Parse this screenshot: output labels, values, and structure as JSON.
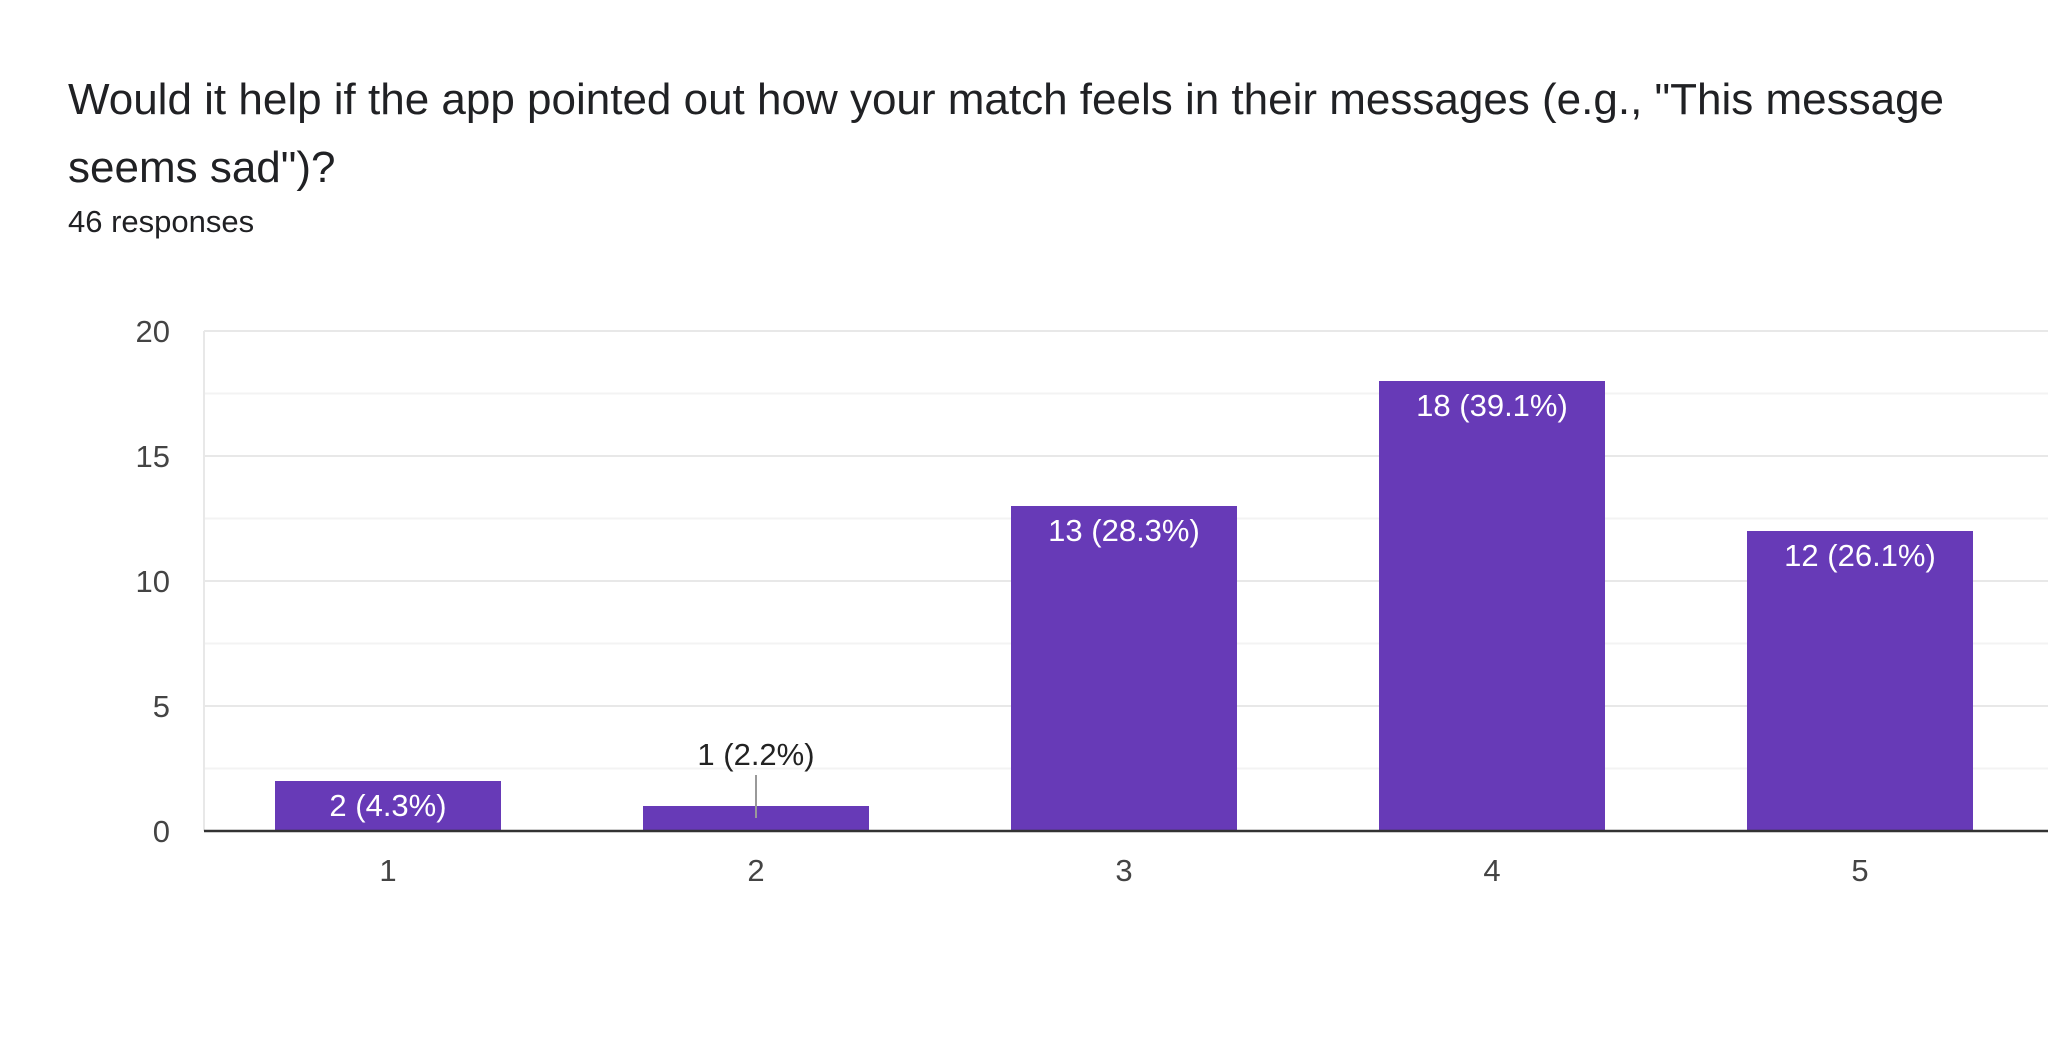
{
  "question": {
    "title": "Would it help if the app pointed out how your match feels in their messages (e.g., \"This message seems sad\")?",
    "responses": "46 responses"
  },
  "colors": {
    "bar": "#673ab7",
    "grid_major": "#e8e8e8",
    "grid_minor": "#f3f3f3",
    "axis": "#333333",
    "text": "#202124",
    "tick_text": "#444444",
    "inside_label": "#ffffff",
    "outside_label": "#222222",
    "leader": "#999999"
  },
  "chart_data": {
    "type": "bar",
    "title": "Would it help if the app pointed out how your match feels in their messages (e.g., \"This message seems sad\")?",
    "xlabel": "",
    "ylabel": "",
    "categories": [
      "1",
      "2",
      "3",
      "4",
      "5"
    ],
    "values": [
      2,
      1,
      13,
      18,
      12
    ],
    "data_labels": [
      "2 (4.3%)",
      "1 (2.2%)",
      "13 (28.3%)",
      "18 (39.1%)",
      "12 (26.1%)"
    ],
    "ylim": [
      0,
      20
    ],
    "yticks": [
      0,
      5,
      10,
      15,
      20
    ],
    "grid": true
  }
}
